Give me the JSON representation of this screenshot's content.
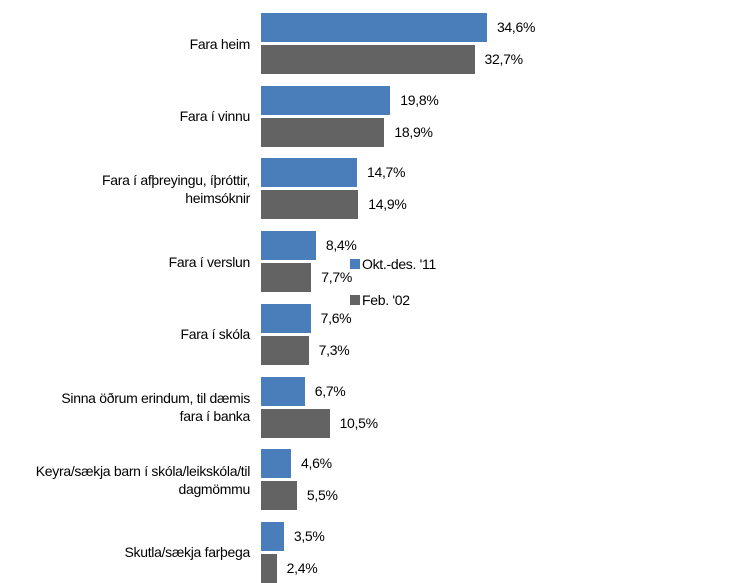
{
  "chart_data": {
    "type": "hbar",
    "categories": [
      "Fara heim",
      "Fara í vinnu",
      "Fara í afþreyingu, íþróttir, heimsóknir",
      "Fara í verslun",
      "Fara í skóla",
      "Sinna öðrum erindum, til dæmis fara í banka",
      "Keyra/sækja barn í skóla/leikskóla/til dagmömmu",
      "Skutla/sækja farþega"
    ],
    "series": [
      {
        "name": "Okt.-des. '11",
        "color": "#4a7ebb",
        "values": [
          34.6,
          19.8,
          14.7,
          8.4,
          7.6,
          6.7,
          4.6,
          3.5
        ],
        "value_labels": [
          "34,6%",
          "19,8%",
          "14,7%",
          "8,4%",
          "7,6%",
          "6,7%",
          "4,6%",
          "3,5%"
        ]
      },
      {
        "name": "Feb. '02",
        "color": "#636363",
        "values": [
          32.7,
          18.9,
          14.9,
          7.7,
          7.3,
          10.5,
          5.5,
          2.4
        ],
        "value_labels": [
          "32,7%",
          "18,9%",
          "14,9%",
          "7,7%",
          "7,3%",
          "10,5%",
          "5,5%",
          "2,4%"
        ]
      }
    ],
    "legend": "right"
  }
}
